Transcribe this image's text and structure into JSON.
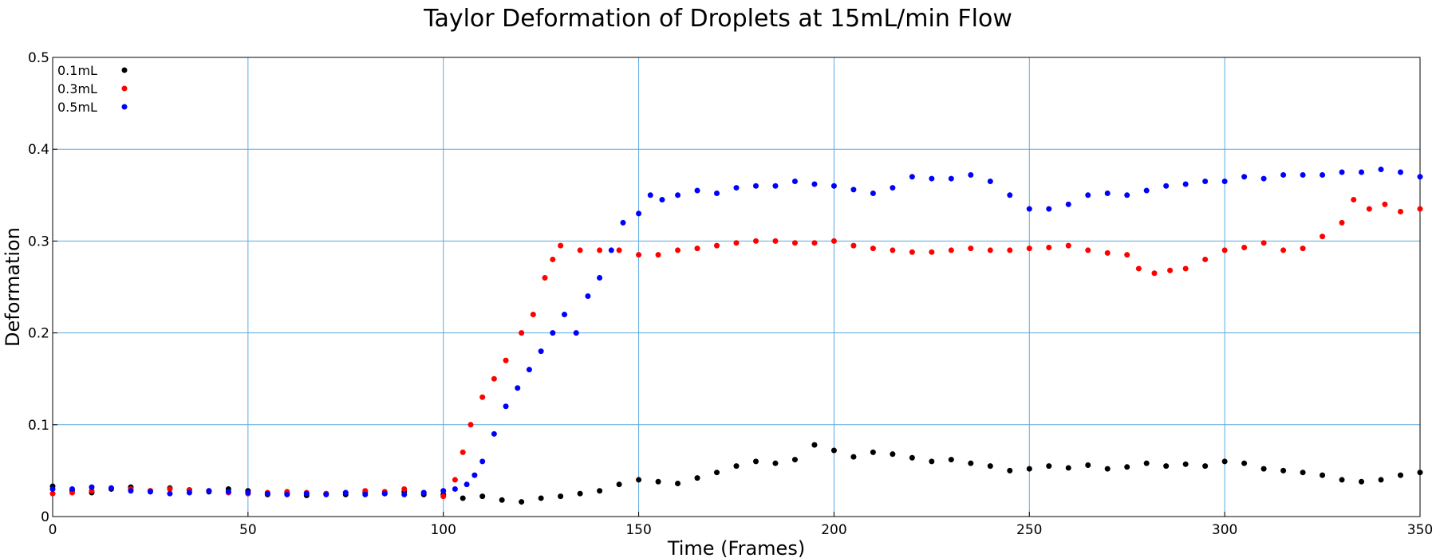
{
  "chart_data": {
    "type": "scatter",
    "title": "Taylor Deformation of Droplets at 15mL/min Flow",
    "xlabel": "Time (Frames)",
    "ylabel": "Deformation",
    "xlim": [
      0,
      350
    ],
    "ylim": [
      0,
      0.5
    ],
    "x_ticks": [
      0,
      50,
      100,
      150,
      200,
      250,
      300,
      350
    ],
    "x_tick_labels": [
      "0",
      "50",
      "100",
      "150",
      "200",
      "250",
      "300",
      "350"
    ],
    "y_ticks": [
      0,
      0.1,
      0.2,
      0.3,
      0.4,
      0.5
    ],
    "y_tick_labels": [
      "0",
      "0.1",
      "0.2",
      "0.3",
      "0.4",
      "0.5"
    ],
    "grid": true,
    "legend_position": "top-left",
    "series": [
      {
        "name": "0.1mL",
        "color": "#000000",
        "points": [
          [
            0,
            0.033
          ],
          [
            5,
            0.028
          ],
          [
            10,
            0.026
          ],
          [
            15,
            0.03
          ],
          [
            20,
            0.032
          ],
          [
            25,
            0.028
          ],
          [
            30,
            0.031
          ],
          [
            35,
            0.029
          ],
          [
            40,
            0.027
          ],
          [
            45,
            0.03
          ],
          [
            50,
            0.028
          ],
          [
            55,
            0.024
          ],
          [
            60,
            0.025
          ],
          [
            65,
            0.023
          ],
          [
            70,
            0.025
          ],
          [
            75,
            0.024
          ],
          [
            80,
            0.026
          ],
          [
            85,
            0.025
          ],
          [
            90,
            0.027
          ],
          [
            95,
            0.024
          ],
          [
            100,
            0.024
          ],
          [
            105,
            0.02
          ],
          [
            110,
            0.022
          ],
          [
            115,
            0.018
          ],
          [
            120,
            0.016
          ],
          [
            125,
            0.02
          ],
          [
            130,
            0.022
          ],
          [
            135,
            0.025
          ],
          [
            140,
            0.028
          ],
          [
            145,
            0.035
          ],
          [
            150,
            0.04
          ],
          [
            155,
            0.038
          ],
          [
            160,
            0.036
          ],
          [
            165,
            0.042
          ],
          [
            170,
            0.048
          ],
          [
            175,
            0.055
          ],
          [
            180,
            0.06
          ],
          [
            185,
            0.058
          ],
          [
            190,
            0.062
          ],
          [
            195,
            0.078
          ],
          [
            200,
            0.072
          ],
          [
            205,
            0.065
          ],
          [
            210,
            0.07
          ],
          [
            215,
            0.068
          ],
          [
            220,
            0.064
          ],
          [
            225,
            0.06
          ],
          [
            230,
            0.062
          ],
          [
            235,
            0.058
          ],
          [
            240,
            0.055
          ],
          [
            245,
            0.05
          ],
          [
            250,
            0.052
          ],
          [
            255,
            0.055
          ],
          [
            260,
            0.053
          ],
          [
            265,
            0.056
          ],
          [
            270,
            0.052
          ],
          [
            275,
            0.054
          ],
          [
            280,
            0.058
          ],
          [
            285,
            0.055
          ],
          [
            290,
            0.057
          ],
          [
            295,
            0.055
          ],
          [
            300,
            0.06
          ],
          [
            305,
            0.058
          ],
          [
            310,
            0.052
          ],
          [
            315,
            0.05
          ],
          [
            320,
            0.048
          ],
          [
            325,
            0.045
          ],
          [
            330,
            0.04
          ],
          [
            335,
            0.038
          ],
          [
            340,
            0.04
          ],
          [
            345,
            0.045
          ],
          [
            350,
            0.048
          ]
        ]
      },
      {
        "name": "0.3mL",
        "color": "#ff0000",
        "points": [
          [
            0,
            0.025
          ],
          [
            5,
            0.026
          ],
          [
            10,
            0.028
          ],
          [
            15,
            0.031
          ],
          [
            20,
            0.03
          ],
          [
            25,
            0.028
          ],
          [
            30,
            0.03
          ],
          [
            35,
            0.029
          ],
          [
            40,
            0.028
          ],
          [
            45,
            0.026
          ],
          [
            50,
            0.025
          ],
          [
            55,
            0.026
          ],
          [
            60,
            0.027
          ],
          [
            65,
            0.026
          ],
          [
            70,
            0.025
          ],
          [
            75,
            0.026
          ],
          [
            80,
            0.028
          ],
          [
            85,
            0.027
          ],
          [
            90,
            0.03
          ],
          [
            95,
            0.026
          ],
          [
            100,
            0.022
          ],
          [
            103,
            0.04
          ],
          [
            105,
            0.07
          ],
          [
            107,
            0.1
          ],
          [
            110,
            0.13
          ],
          [
            113,
            0.15
          ],
          [
            116,
            0.17
          ],
          [
            120,
            0.2
          ],
          [
            123,
            0.22
          ],
          [
            126,
            0.26
          ],
          [
            128,
            0.28
          ],
          [
            130,
            0.295
          ],
          [
            135,
            0.29
          ],
          [
            140,
            0.29
          ],
          [
            145,
            0.29
          ],
          [
            150,
            0.285
          ],
          [
            155,
            0.285
          ],
          [
            160,
            0.29
          ],
          [
            165,
            0.292
          ],
          [
            170,
            0.295
          ],
          [
            175,
            0.298
          ],
          [
            180,
            0.3
          ],
          [
            185,
            0.3
          ],
          [
            190,
            0.298
          ],
          [
            195,
            0.298
          ],
          [
            200,
            0.3
          ],
          [
            205,
            0.295
          ],
          [
            210,
            0.292
          ],
          [
            215,
            0.29
          ],
          [
            220,
            0.288
          ],
          [
            225,
            0.288
          ],
          [
            230,
            0.29
          ],
          [
            235,
            0.292
          ],
          [
            240,
            0.29
          ],
          [
            245,
            0.29
          ],
          [
            250,
            0.292
          ],
          [
            255,
            0.293
          ],
          [
            260,
            0.295
          ],
          [
            265,
            0.29
          ],
          [
            270,
            0.287
          ],
          [
            275,
            0.285
          ],
          [
            278,
            0.27
          ],
          [
            282,
            0.265
          ],
          [
            286,
            0.268
          ],
          [
            290,
            0.27
          ],
          [
            295,
            0.28
          ],
          [
            300,
            0.29
          ],
          [
            305,
            0.293
          ],
          [
            310,
            0.298
          ],
          [
            315,
            0.29
          ],
          [
            320,
            0.292
          ],
          [
            325,
            0.305
          ],
          [
            330,
            0.32
          ],
          [
            333,
            0.345
          ],
          [
            337,
            0.335
          ],
          [
            341,
            0.34
          ],
          [
            345,
            0.332
          ],
          [
            350,
            0.335
          ]
        ]
      },
      {
        "name": "0.5mL",
        "color": "#0000ff",
        "points": [
          [
            0,
            0.03
          ],
          [
            5,
            0.03
          ],
          [
            10,
            0.032
          ],
          [
            15,
            0.031
          ],
          [
            20,
            0.028
          ],
          [
            25,
            0.027
          ],
          [
            30,
            0.025
          ],
          [
            35,
            0.026
          ],
          [
            40,
            0.028
          ],
          [
            45,
            0.027
          ],
          [
            50,
            0.026
          ],
          [
            55,
            0.025
          ],
          [
            60,
            0.024
          ],
          [
            65,
            0.025
          ],
          [
            70,
            0.024
          ],
          [
            75,
            0.026
          ],
          [
            80,
            0.024
          ],
          [
            85,
            0.025
          ],
          [
            90,
            0.024
          ],
          [
            95,
            0.026
          ],
          [
            100,
            0.028
          ],
          [
            103,
            0.03
          ],
          [
            106,
            0.035
          ],
          [
            108,
            0.045
          ],
          [
            110,
            0.06
          ],
          [
            113,
            0.09
          ],
          [
            116,
            0.12
          ],
          [
            119,
            0.14
          ],
          [
            122,
            0.16
          ],
          [
            125,
            0.18
          ],
          [
            128,
            0.2
          ],
          [
            131,
            0.22
          ],
          [
            134,
            0.2
          ],
          [
            137,
            0.24
          ],
          [
            140,
            0.26
          ],
          [
            143,
            0.29
          ],
          [
            146,
            0.32
          ],
          [
            150,
            0.33
          ],
          [
            153,
            0.35
          ],
          [
            156,
            0.345
          ],
          [
            160,
            0.35
          ],
          [
            165,
            0.355
          ],
          [
            170,
            0.352
          ],
          [
            175,
            0.358
          ],
          [
            180,
            0.36
          ],
          [
            185,
            0.36
          ],
          [
            190,
            0.365
          ],
          [
            195,
            0.362
          ],
          [
            200,
            0.36
          ],
          [
            205,
            0.356
          ],
          [
            210,
            0.352
          ],
          [
            215,
            0.358
          ],
          [
            220,
            0.37
          ],
          [
            225,
            0.368
          ],
          [
            230,
            0.368
          ],
          [
            235,
            0.372
          ],
          [
            240,
            0.365
          ],
          [
            245,
            0.35
          ],
          [
            250,
            0.335
          ],
          [
            255,
            0.335
          ],
          [
            260,
            0.34
          ],
          [
            265,
            0.35
          ],
          [
            270,
            0.352
          ],
          [
            275,
            0.35
          ],
          [
            280,
            0.355
          ],
          [
            285,
            0.36
          ],
          [
            290,
            0.362
          ],
          [
            295,
            0.365
          ],
          [
            300,
            0.365
          ],
          [
            305,
            0.37
          ],
          [
            310,
            0.368
          ],
          [
            315,
            0.372
          ],
          [
            320,
            0.372
          ],
          [
            325,
            0.372
          ],
          [
            330,
            0.375
          ],
          [
            335,
            0.375
          ],
          [
            340,
            0.378
          ],
          [
            345,
            0.375
          ],
          [
            350,
            0.37
          ]
        ]
      }
    ]
  }
}
